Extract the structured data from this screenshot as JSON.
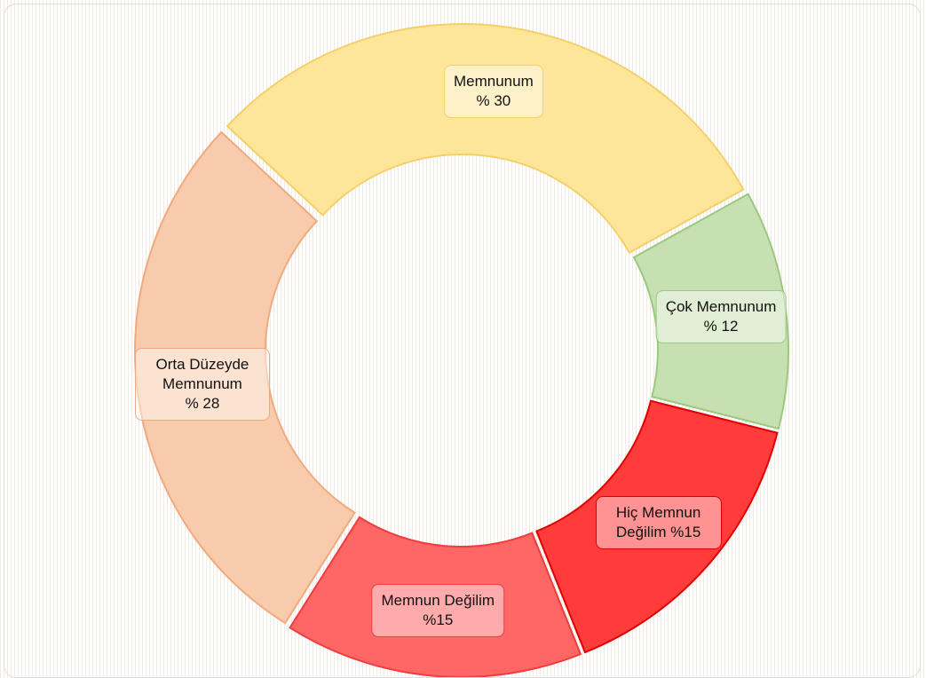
{
  "chart_data": {
    "type": "donut",
    "categories": [
      "Memnunum",
      "Çok Memnunum",
      "Hiç Memnun Değilim",
      "Memnun Değilim",
      "Orta Düzeyde Memnunum"
    ],
    "values": [
      30,
      12,
      15,
      15,
      28
    ],
    "value_labels": [
      "% 30",
      "% 12",
      "%15",
      "%15",
      "% 28"
    ],
    "colors": [
      "#fde69a",
      "#c6e0b2",
      "#ff3b3b",
      "#ff6666",
      "#f7cbac"
    ]
  }
}
